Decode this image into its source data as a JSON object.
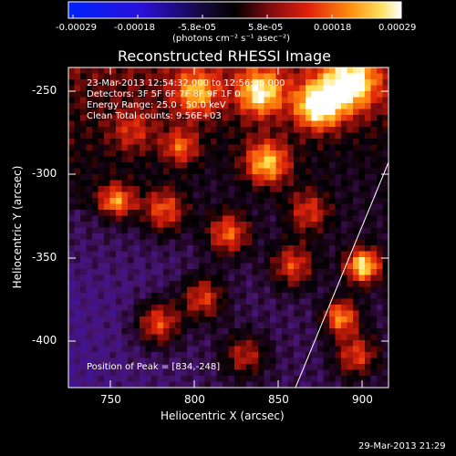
{
  "colorbar": {
    "ticks": [
      "-0.00029",
      "-0.00018",
      "-5.8e-05",
      "5.8e-05",
      "0.00018",
      "0.00029"
    ],
    "unit_label": "(photons cm⁻² s⁻¹ asec⁻²)"
  },
  "title": "Reconstructed RHESSI Image",
  "info": {
    "line1": "23-Mar-2013 12:54:32.000 to 12:56:36.000",
    "line2": "Detectors: 3F 5F 6F 7F 8F 9F 1F 0",
    "line3": "Energy Range: 25.0 - 50.0 keV",
    "line4": "Clean     Total counts: 9.56E+03"
  },
  "peak_label": "Position of Peak = [834,-248]",
  "axes": {
    "xlabel": "Heliocentric X (arcsec)",
    "ylabel": "Heliocentric Y (arcsec)",
    "xticks": [
      "750",
      "800",
      "850",
      "900"
    ],
    "yticks": [
      "-250",
      "-300",
      "-350",
      "-400"
    ],
    "xlim": [
      725,
      915
    ],
    "ylim": [
      -430,
      -238
    ]
  },
  "timestamp": "29-Mar-2013 21:29",
  "colors": {
    "background": "#000000",
    "foreground": "#ffffff",
    "colormap_low": "#0000ff",
    "colormap_mid": "#000000",
    "colormap_high": "#ffffff"
  }
}
